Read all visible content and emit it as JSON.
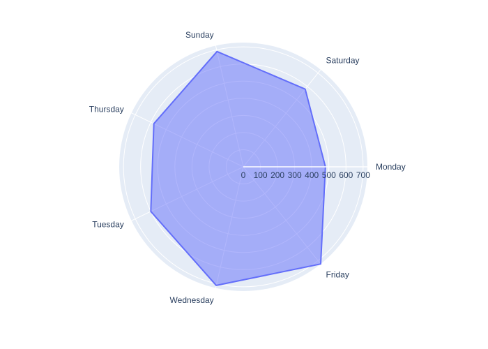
{
  "chart_data": {
    "type": "radar",
    "title": "",
    "categories": [
      "Monday",
      "Saturday",
      "Sunday",
      "Thursday",
      "Tuesday",
      "Wednesday",
      "Friday"
    ],
    "series": [
      {
        "values": [
          480,
          580,
          690,
          580,
          600,
          710,
          725
        ]
      }
    ],
    "radial_ticks": [
      "0",
      "100",
      "200",
      "300",
      "400",
      "500",
      "600",
      "700"
    ],
    "radial_range": [
      0,
      725
    ],
    "grid": true,
    "legend": "none",
    "colors": {
      "fill": "rgba(99,110,250,0.5)",
      "line": "#636efa",
      "polar_bg": "#e5ecf6",
      "grid": "#ffffff",
      "text": "#2a3f5f"
    }
  }
}
